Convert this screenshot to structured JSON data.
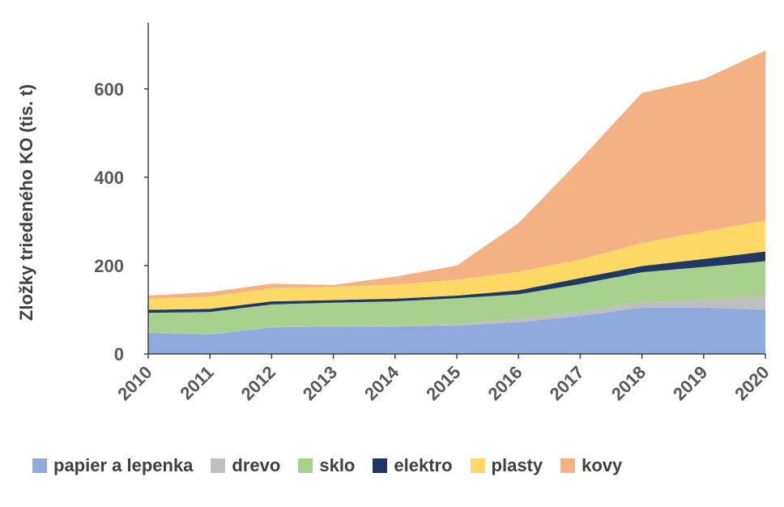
{
  "chart_data": {
    "type": "area",
    "stacked": true,
    "ylabel": "Zložky triedeného KO (tis. t)",
    "xlabel": "",
    "x": [
      "2010",
      "2011",
      "2012",
      "2013",
      "2014",
      "2015",
      "2016",
      "2017",
      "2018",
      "2019",
      "2020"
    ],
    "yticks": [
      0,
      200,
      400,
      600
    ],
    "ylim": [
      0,
      750
    ],
    "grid": false,
    "legend_position": "bottom",
    "series": [
      {
        "name": "papier a lepenka",
        "color": "#8faadc",
        "values": [
          48,
          44,
          60,
          62,
          62,
          64,
          72,
          86,
          105,
          105,
          100
        ]
      },
      {
        "name": "drevo",
        "color": "#bfbfbf",
        "values": [
          1,
          1,
          2,
          2,
          3,
          4,
          8,
          10,
          12,
          18,
          30
        ]
      },
      {
        "name": "sklo",
        "color": "#a9d18e",
        "values": [
          44,
          50,
          50,
          52,
          54,
          58,
          55,
          62,
          68,
          74,
          80
        ]
      },
      {
        "name": "elektro",
        "color": "#203864",
        "values": [
          7,
          7,
          7,
          6,
          6,
          6,
          9,
          14,
          14,
          18,
          22
        ]
      },
      {
        "name": "plasty",
        "color": "#ffd966",
        "values": [
          25,
          28,
          30,
          30,
          32,
          36,
          42,
          42,
          52,
          62,
          70
        ]
      },
      {
        "name": "kovy",
        "color": "#f4b183",
        "values": [
          7,
          10,
          10,
          4,
          18,
          32,
          110,
          226,
          340,
          345,
          385
        ]
      }
    ]
  }
}
